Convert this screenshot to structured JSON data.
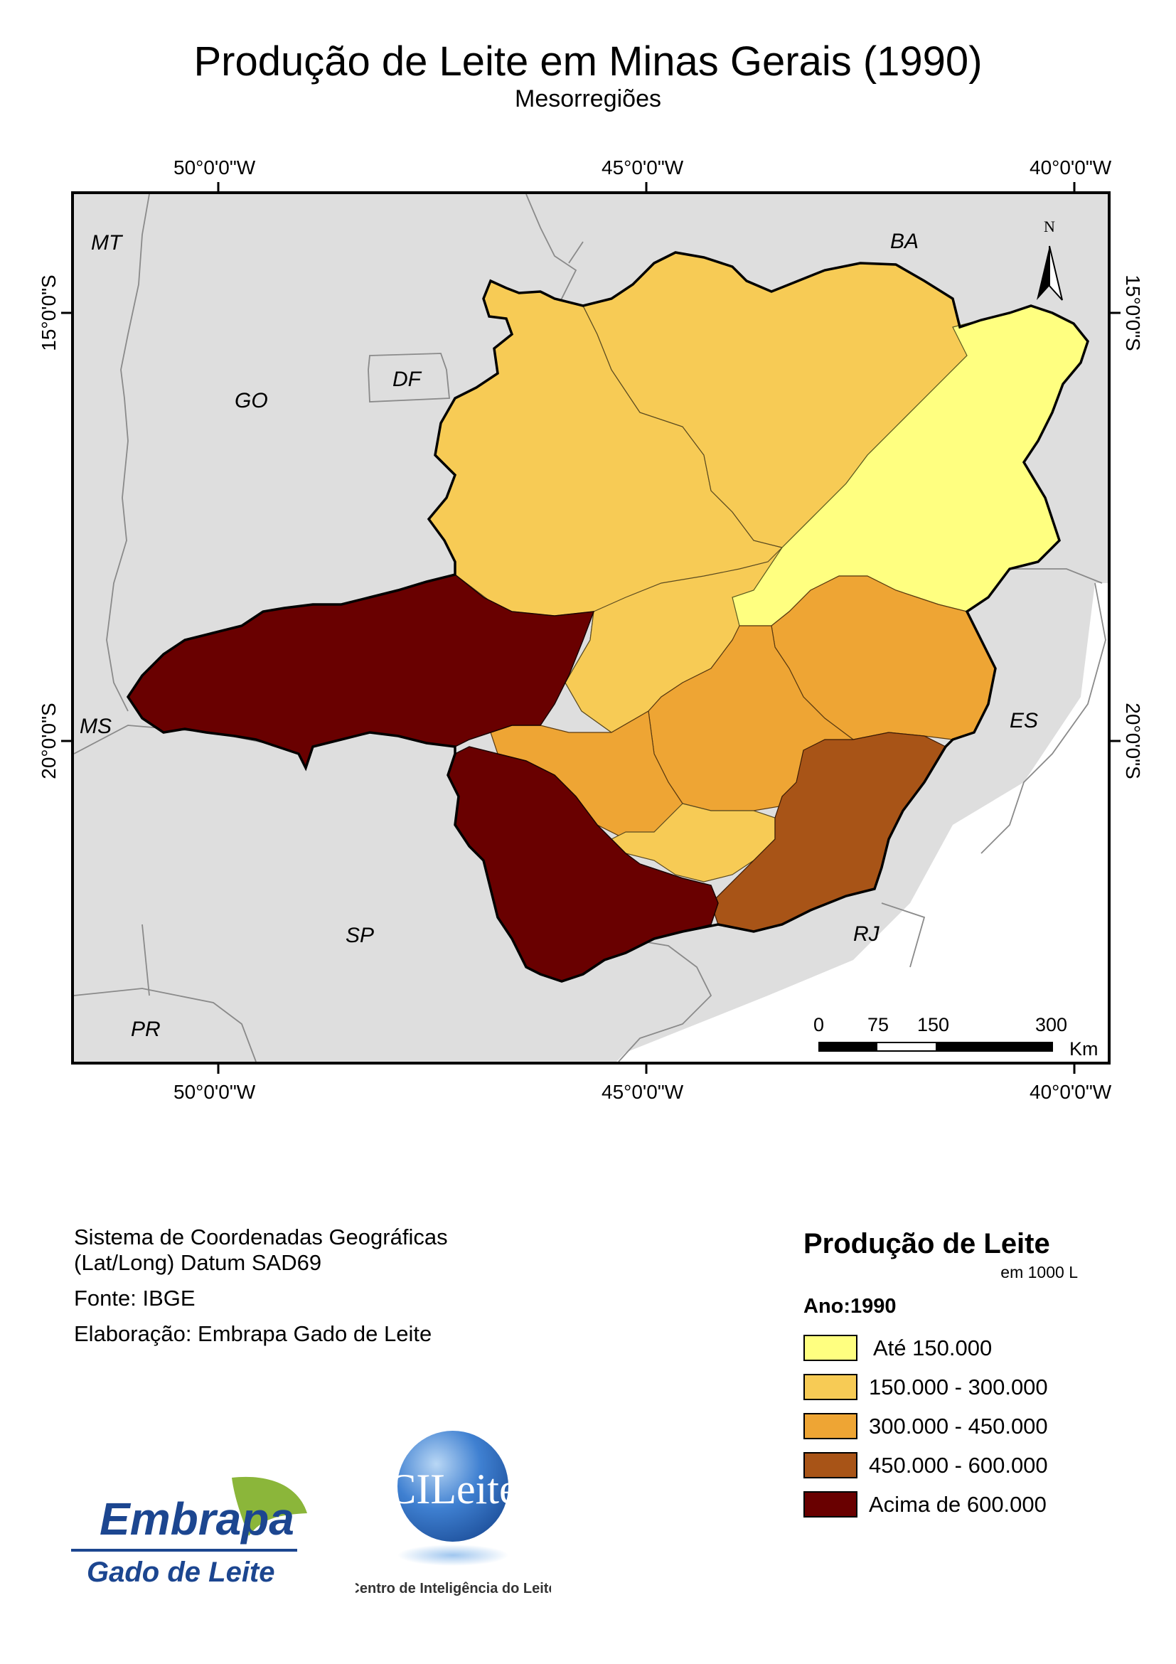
{
  "header": {
    "title": "Produção de Leite em Minas Gerais (1990)",
    "subtitle": "Mesorregiões"
  },
  "map": {
    "top_coords": [
      "50°0'0\"W",
      "45°0'0\"W",
      "40°0'0\"W"
    ],
    "bottom_coords": [
      "50°0'0\"W",
      "45°0'0\"W",
      "40°0'0\"W"
    ],
    "left_coords": [
      "15°0'0\"S",
      "20°0'0\"S"
    ],
    "right_coords": [
      "15°0'0\"S",
      "20°0'0\"S"
    ],
    "state_labels": [
      "MT",
      "BA",
      "GO",
      "DF",
      "MS",
      "ES",
      "SP",
      "RJ",
      "PR"
    ],
    "north_arrow": "N",
    "scale_bar": {
      "ticks": [
        "0",
        "75",
        "150",
        "300"
      ],
      "unit": "Km"
    },
    "colors": {
      "background_land": "#dedede",
      "class_1": "#ffff80",
      "class_2": "#f7cb55",
      "class_3": "#eea534",
      "class_4": "#a85417",
      "class_5": "#690000"
    }
  },
  "info": {
    "line1": "Sistema de Coordenadas Geográficas",
    "line2": "(Lat/Long) Datum SAD69",
    "source": "Fonte: IBGE",
    "author": "Elaboração: Embrapa Gado de Leite"
  },
  "legend": {
    "title": "Produção de Leite",
    "unit": "em 1000 L",
    "year": "Ano:1990",
    "items": [
      {
        "label": "Até 150.000",
        "color": "#ffff80"
      },
      {
        "label": "150.000 - 300.000",
        "color": "#f7cb55"
      },
      {
        "label": "300.000 - 450.000",
        "color": "#eea534"
      },
      {
        "label": "450.000 - 600.000",
        "color": "#a85417"
      },
      {
        "label": "Acima de 600.000",
        "color": "#690000"
      }
    ]
  },
  "logos": {
    "embrapa_name": "Embrapa",
    "embrapa_unit": "Gado de Leite",
    "cileite_name": "CILeite",
    "cileite_full": "Centro de Inteligência do Leite"
  }
}
